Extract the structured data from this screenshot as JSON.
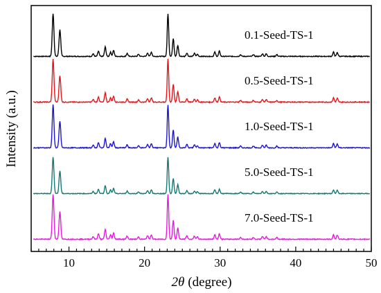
{
  "chart_data": {
    "type": "line",
    "xlabel": "2θ (degree)",
    "xlabel_parts": {
      "symbol": "2θ",
      "unit": "(degree)"
    },
    "ylabel": "Intensity (a.u.)",
    "xlim": [
      5,
      50
    ],
    "x_ticks": [
      10,
      20,
      30,
      40,
      50
    ],
    "y_ticks_shown": false,
    "grid": false,
    "legend": "none (labels placed beside each curve)",
    "peak_positions_2theta": [
      7.9,
      8.8,
      13.2,
      13.9,
      14.8,
      15.5,
      15.9,
      17.7,
      19.2,
      20.4,
      20.9,
      23.1,
      23.8,
      24.4,
      25.6,
      26.6,
      27.0,
      29.3,
      29.9,
      32.7,
      34.4,
      35.6,
      36.1,
      37.5,
      45.0,
      45.5
    ],
    "peak_relative_heights": [
      1.0,
      0.62,
      0.06,
      0.12,
      0.22,
      0.1,
      0.14,
      0.07,
      0.05,
      0.08,
      0.1,
      1.0,
      0.42,
      0.25,
      0.08,
      0.07,
      0.05,
      0.1,
      0.12,
      0.04,
      0.04,
      0.06,
      0.06,
      0.04,
      0.1,
      0.09
    ],
    "series": [
      {
        "name": "0.1-Seed-TS-1",
        "color": "#000000",
        "scale": 1.0
      },
      {
        "name": "0.5-Seed-TS-1",
        "color": "#e8141a",
        "scale": 1.0
      },
      {
        "name": "1.0-Seed-TS-1",
        "color": "#1e14d6",
        "scale": 1.0
      },
      {
        "name": "5.0-Seed-TS-1",
        "color": "#137a72",
        "scale": 0.85
      },
      {
        "name": "7.0-Seed-TS-1",
        "color": "#e81ae0",
        "scale": 1.05
      }
    ]
  }
}
